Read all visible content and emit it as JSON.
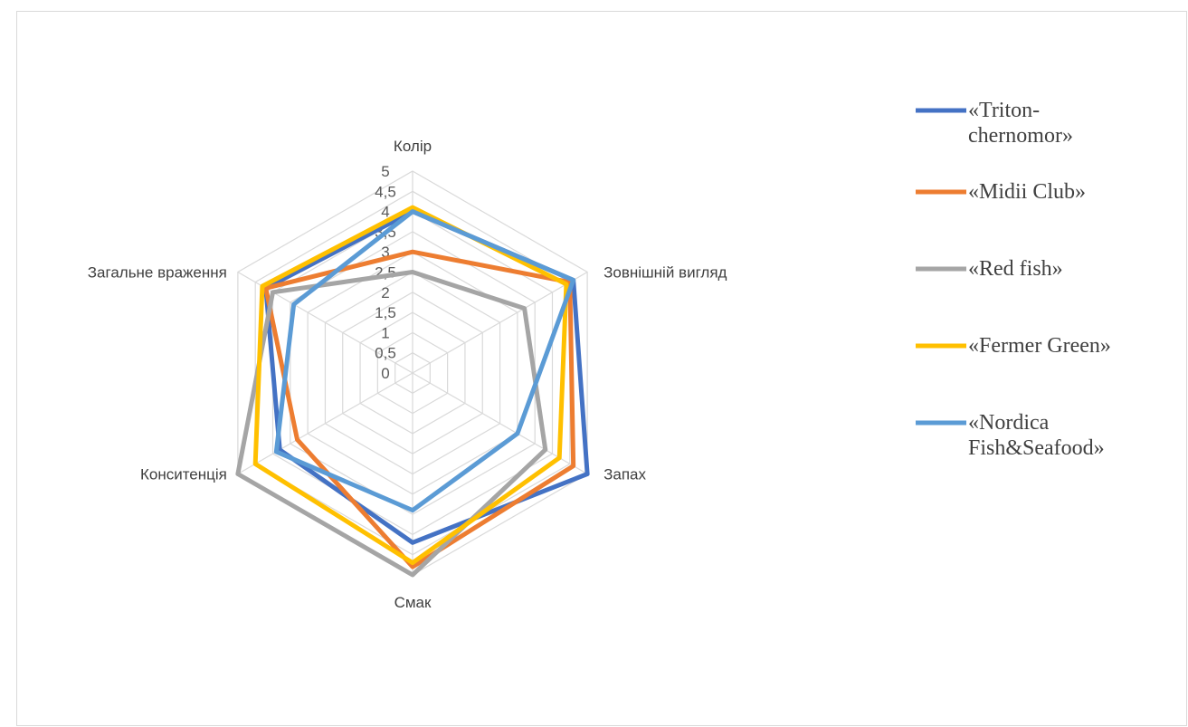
{
  "chart_data": {
    "type": "radar",
    "title": "",
    "categories": [
      "Колір",
      "Зовнішній вигляд",
      "Запах",
      "Смак",
      "Конситенція",
      "Загальне враження"
    ],
    "tick_labels": [
      "0",
      "0,5",
      "1",
      "1,5",
      "2",
      "2,5",
      "3",
      "3,5",
      "4",
      "4,5",
      "5"
    ],
    "rmin": 0,
    "rmax": 5,
    "grid": true,
    "legend_position": "right",
    "series": [
      {
        "name": "«Triton-chernomor»",
        "legend_lines": [
          "«Triton-",
          "chernomor»"
        ],
        "color": "#4472C4",
        "values": [
          4.0,
          4.6,
          5.0,
          4.2,
          3.8,
          4.2
        ]
      },
      {
        "name": "«Midii Club»",
        "legend_lines": [
          "«Midii Club»"
        ],
        "color": "#ED7D31",
        "values": [
          3.0,
          4.5,
          4.6,
          4.8,
          3.3,
          4.2
        ]
      },
      {
        "name": "«Red fish»",
        "legend_lines": [
          "«Red fish»"
        ],
        "color": "#A5A5A5",
        "values": [
          2.5,
          3.2,
          3.8,
          5.0,
          5.0,
          4.0
        ]
      },
      {
        "name": "«Fermer Green»",
        "legend_lines": [
          "«Fermer Green»"
        ],
        "color": "#FFC000",
        "values": [
          4.1,
          4.4,
          4.2,
          4.7,
          4.5,
          4.3
        ]
      },
      {
        "name": "«Nordica Fish&Seafood»",
        "legend_lines": [
          "«Nordica",
          "Fish&Seafood»"
        ],
        "color": "#5B9BD5",
        "values": [
          4.0,
          4.6,
          3.0,
          3.4,
          3.9,
          3.4
        ]
      }
    ]
  }
}
